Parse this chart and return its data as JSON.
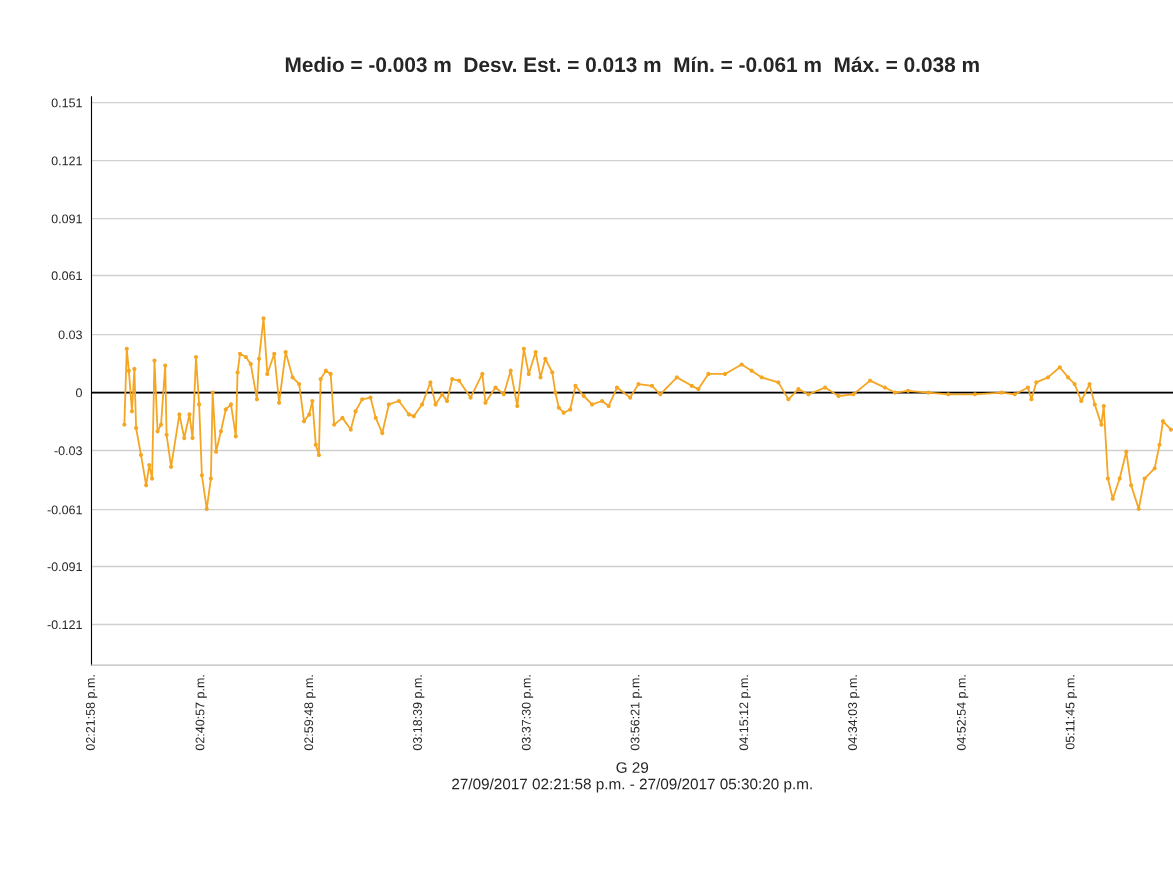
{
  "chart_data": {
    "type": "line",
    "title": "Medio = -0.003 m  Desv. Est. = 0.013 m  Mín. = -0.061 m  Máx. = 0.038 m",
    "xlabel": "G 29\n27/09/2017 02:21:58 p.m. - 27/09/2017 05:30:20 p.m.",
    "xlim": [
      14.3661,
      17.49
    ],
    "xticks": [
      {
        "value": 14.3661,
        "label": "02:21:58 p.m."
      },
      {
        "value": 14.6825,
        "label": "02:40:57 p.m."
      },
      {
        "value": 14.9967,
        "label": "02:59:48 p.m."
      },
      {
        "value": 15.3108,
        "label": "03:18:39 p.m."
      },
      {
        "value": 15.625,
        "label": "03:37:30 p.m."
      },
      {
        "value": 15.9392,
        "label": "03:56:21 p.m."
      },
      {
        "value": 16.2533,
        "label": "04:15:12 p.m."
      },
      {
        "value": 16.5675,
        "label": "04:34:03 p.m."
      },
      {
        "value": 16.8817,
        "label": "04:52:54 p.m."
      },
      {
        "value": 17.1958,
        "label": "05:11:45 p.m."
      }
    ],
    "ylim": [
      -0.142,
      0.154
    ],
    "yticks": [
      {
        "value": 0.151,
        "label": "0.151"
      },
      {
        "value": 0.1208,
        "label": "0.121"
      },
      {
        "value": 0.0906,
        "label": "0.091"
      },
      {
        "value": 0.061,
        "label": "0.061"
      },
      {
        "value": 0.0302,
        "label": "0.03"
      },
      {
        "value": 0,
        "label": "0"
      },
      {
        "value": -0.0302,
        "label": "-0.03"
      },
      {
        "value": -0.061,
        "label": "-0.061"
      },
      {
        "value": -0.0906,
        "label": "-0.091"
      },
      {
        "value": -0.1208,
        "label": "-0.121"
      }
    ],
    "grid": "y",
    "marker": "circle",
    "line_style": "solid",
    "ref_lines": [
      {
        "axis": "y",
        "value": 0,
        "color": "#000000"
      }
    ],
    "series": [
      {
        "color": "#f5a623",
        "x": [
          14.461,
          14.468,
          14.474,
          14.483,
          14.49,
          14.495,
          14.509,
          14.524,
          14.533,
          14.541,
          14.548,
          14.557,
          14.567,
          14.579,
          14.583,
          14.596,
          14.62,
          14.634,
          14.649,
          14.658,
          14.668,
          14.677,
          14.685,
          14.699,
          14.711,
          14.716,
          14.726,
          14.74,
          14.754,
          14.769,
          14.783,
          14.788,
          14.795,
          14.812,
          14.826,
          14.844,
          14.85,
          14.863,
          14.874,
          14.894,
          14.908,
          14.927,
          14.947,
          14.966,
          14.98,
          14.995,
          15.004,
          15.014,
          15.023,
          15.028,
          15.043,
          15.057,
          15.067,
          15.091,
          15.115,
          15.129,
          15.148,
          15.172,
          15.187,
          15.206,
          15.225,
          15.254,
          15.283,
          15.297,
          15.321,
          15.345,
          15.36,
          15.379,
          15.393,
          15.408,
          15.428,
          15.461,
          15.495,
          15.504,
          15.533,
          15.557,
          15.577,
          15.596,
          15.615,
          15.629,
          15.649,
          15.663,
          15.677,
          15.697,
          15.706,
          15.716,
          15.73,
          15.749,
          15.764,
          15.788,
          15.812,
          15.841,
          15.86,
          15.884,
          15.922,
          15.946,
          15.985,
          16.009,
          16.057,
          16.1,
          16.119,
          16.148,
          16.196,
          16.244,
          16.273,
          16.302,
          16.35,
          16.379,
          16.408,
          16.437,
          16.485,
          16.524,
          16.567,
          16.615,
          16.658,
          16.687,
          16.725,
          16.783,
          16.841,
          16.918,
          16.995,
          17.033,
          17.071,
          17.081,
          17.095,
          17.129,
          17.163,
          17.187,
          17.206,
          17.225,
          17.249,
          17.264,
          17.283,
          17.29,
          17.302,
          17.316,
          17.336,
          17.355,
          17.369,
          17.391,
          17.408,
          17.437,
          17.451,
          17.461,
          17.484
        ],
        "values": [
          -0.0167,
          0.0228,
          0.0114,
          -0.0097,
          0.0123,
          -0.0185,
          -0.0325,
          -0.0483,
          -0.0378,
          -0.0448,
          0.0167,
          -0.0202,
          -0.0167,
          0.0141,
          -0.022,
          -0.0387,
          -0.0114,
          -0.0237,
          -0.0114,
          -0.0237,
          0.0185,
          -0.0062,
          -0.0431,
          -0.0606,
          -0.0448,
          0,
          -0.0308,
          -0.0202,
          -0.0088,
          -0.0062,
          -0.0228,
          0.0105,
          0.0202,
          0.0185,
          0.0149,
          -0.0035,
          0.0176,
          0.0387,
          0.0097,
          0.0202,
          -0.0053,
          0.0211,
          0.0079,
          0.0044,
          -0.0149,
          -0.0114,
          -0.0044,
          -0.0272,
          -0.0325,
          0.007,
          0.0114,
          0.0097,
          -0.0167,
          -0.0132,
          -0.0193,
          -0.0097,
          -0.0035,
          -0.0026,
          -0.0132,
          -0.0211,
          -0.0062,
          -0.0044,
          -0.0114,
          -0.0123,
          -0.0062,
          0.0053,
          -0.0062,
          -0.0009,
          -0.0044,
          0.007,
          0.0062,
          -0.0026,
          0.0097,
          -0.0053,
          0.0026,
          -0.0009,
          0.0114,
          -0.007,
          0.0228,
          0.0097,
          0.0211,
          0.0079,
          0.0176,
          0.0105,
          0,
          -0.0079,
          -0.0105,
          -0.0088,
          0.0035,
          -0.0018,
          -0.0062,
          -0.0044,
          -0.007,
          0.0026,
          -0.0026,
          0.0044,
          0.0035,
          -0.0009,
          0.0079,
          0.0035,
          0.0018,
          0.0097,
          0.0097,
          0.0146,
          0.0114,
          0.0079,
          0.0053,
          -0.0035,
          0.0018,
          -0.0009,
          0.0026,
          -0.0018,
          -0.0009,
          0.0062,
          0.0026,
          0,
          0.0009,
          0,
          -0.0009,
          -0.0009,
          0,
          -0.0009,
          0.0026,
          -0.0035,
          0.0053,
          0.0079,
          0.0132,
          0.0079,
          0.0044,
          -0.0044,
          0.0044,
          -0.0062,
          -0.0167,
          -0.007,
          -0.0448,
          -0.0553,
          -0.0448,
          -0.0308,
          -0.0483,
          -0.0606,
          -0.0448,
          -0.0395,
          -0.0272,
          -0.0149,
          -0.0193
        ]
      }
    ]
  }
}
